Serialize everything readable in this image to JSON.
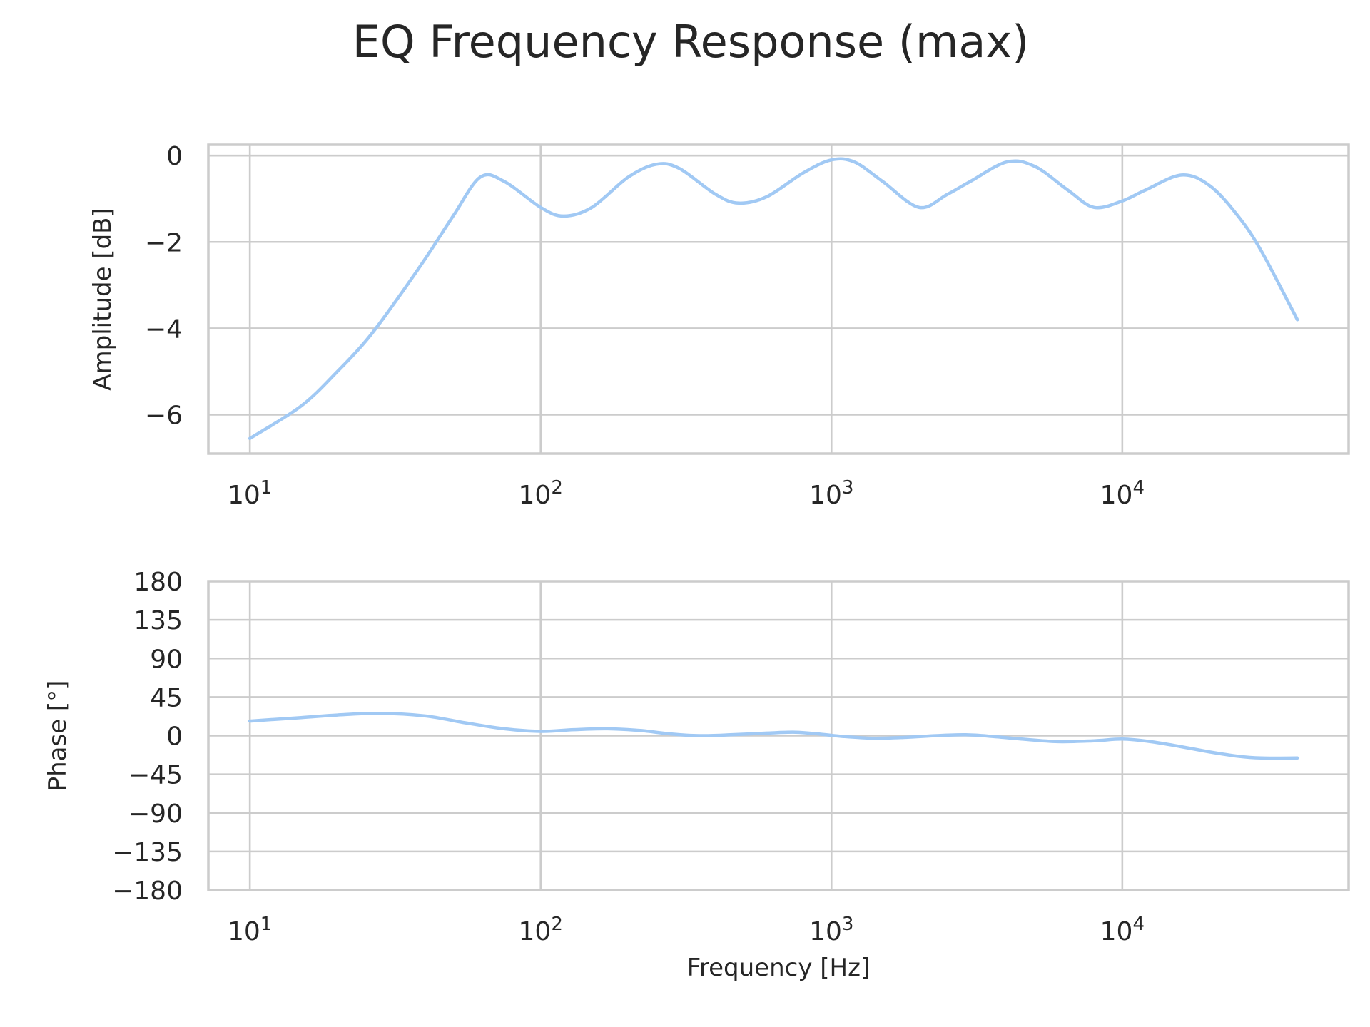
{
  "figure": {
    "title": "EQ Frequency Response (max)",
    "line_color": "#a1c9f4",
    "grid_color": "#cccccc",
    "text_color": "#262626"
  },
  "chart_data": [
    {
      "type": "line",
      "xscale": "log",
      "xlabel": "",
      "ylabel": "Amplitude [dB]",
      "xlim": [
        7.2,
        60000
      ],
      "ylim": [
        -6.9,
        0.25
      ],
      "x_ticks": [
        10,
        100,
        1000,
        10000
      ],
      "x_tick_labels": [
        {
          "base": "10",
          "exp": "1"
        },
        {
          "base": "10",
          "exp": "2"
        },
        {
          "base": "10",
          "exp": "3"
        },
        {
          "base": "10",
          "exp": "4"
        }
      ],
      "y_ticks": [
        0,
        -2,
        -4,
        -6
      ],
      "y_tick_labels": [
        "0",
        "−2",
        "−4",
        "−6"
      ],
      "grid": true,
      "series": [
        {
          "x": [
            10,
            15,
            20,
            25,
            30,
            40,
            50,
            62,
            75,
            100,
            120,
            150,
            200,
            250,
            300,
            400,
            480,
            600,
            800,
            1000,
            1200,
            1500,
            2000,
            2500,
            3000,
            4000,
            5000,
            6500,
            8000,
            10000,
            12000,
            16000,
            20000,
            25000,
            30000,
            40000
          ],
          "y": [
            -6.55,
            -5.8,
            -5.0,
            -4.3,
            -3.6,
            -2.4,
            -1.4,
            -0.5,
            -0.6,
            -1.2,
            -1.4,
            -1.2,
            -0.5,
            -0.2,
            -0.3,
            -0.9,
            -1.1,
            -0.95,
            -0.4,
            -0.1,
            -0.15,
            -0.6,
            -1.2,
            -0.9,
            -0.6,
            -0.15,
            -0.25,
            -0.8,
            -1.2,
            -1.05,
            -0.8,
            -0.45,
            -0.7,
            -1.4,
            -2.2,
            -3.8
          ]
        }
      ]
    },
    {
      "type": "line",
      "xscale": "log",
      "xlabel": "Frequency [Hz]",
      "ylabel": "Phase [°]",
      "xlim": [
        7.2,
        60000
      ],
      "ylim": [
        -180,
        180
      ],
      "x_ticks": [
        10,
        100,
        1000,
        10000
      ],
      "x_tick_labels": [
        {
          "base": "10",
          "exp": "1"
        },
        {
          "base": "10",
          "exp": "2"
        },
        {
          "base": "10",
          "exp": "3"
        },
        {
          "base": "10",
          "exp": "4"
        }
      ],
      "y_ticks": [
        180,
        135,
        90,
        45,
        0,
        -45,
        -90,
        -135,
        -180
      ],
      "y_tick_labels": [
        "180",
        "135",
        "90",
        "45",
        "0",
        "−45",
        "−90",
        "−135",
        "−180"
      ],
      "grid": true,
      "series": [
        {
          "x": [
            10,
            15,
            20,
            28,
            40,
            55,
            75,
            100,
            130,
            170,
            220,
            280,
            350,
            450,
            600,
            750,
            900,
            1100,
            1400,
            1800,
            2300,
            2900,
            3600,
            4500,
            6000,
            8000,
            10000,
            12500,
            16000,
            20000,
            25000,
            30000,
            40000
          ],
          "y": [
            17,
            21,
            24,
            26,
            23,
            15,
            8,
            5,
            7,
            8,
            6,
            2,
            0,
            1,
            3,
            4,
            2,
            -1,
            -3,
            -2,
            0,
            1,
            -1,
            -4,
            -7,
            -6,
            -4,
            -7,
            -13,
            -19,
            -24,
            -26,
            -26
          ]
        }
      ]
    }
  ]
}
